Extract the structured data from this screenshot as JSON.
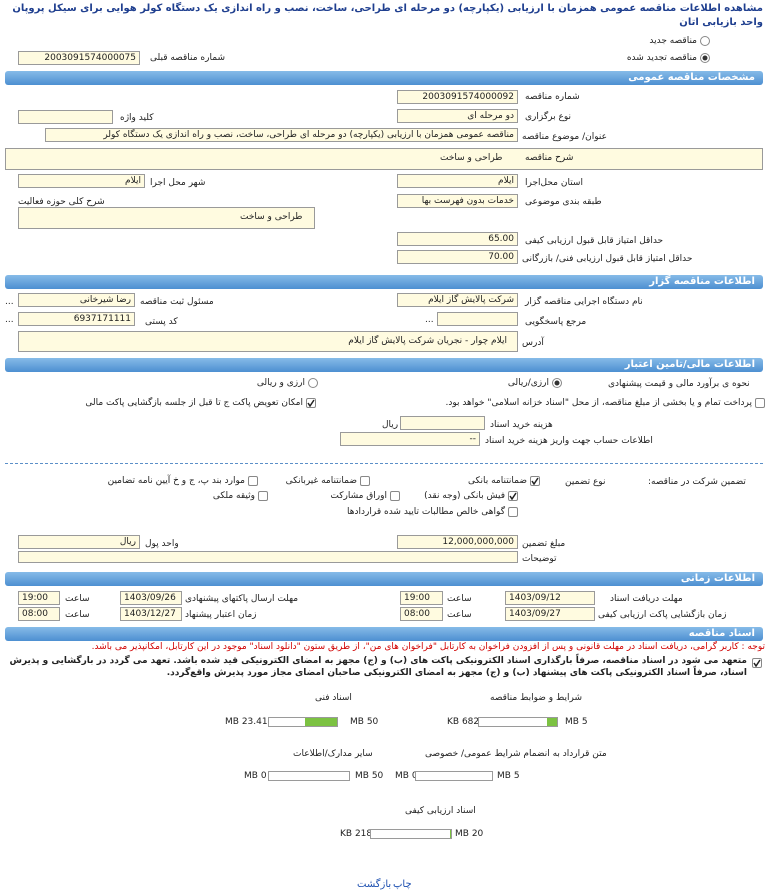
{
  "header": {
    "title": "مشاهده اطلاعات مناقصه عمومی همزمان با ارزیابی (یکپارچه) دو مرحله ای طراحی، ساخت، نصب و راه اندازی یک دستگاه کولر هوایی برای سیکل پروپان واحد بازیابی اتان"
  },
  "tender_type": {
    "new": "مناقصه جدید",
    "renewed": "مناقصه تجدید شده",
    "previous_number_label": "شماره مناقصه قبلی",
    "previous_number": "2003091574000075"
  },
  "general": {
    "heading": "مشخصات مناقصه عمومی",
    "number_label": "شماره مناقصه",
    "number": "2003091574000092",
    "holding_type_label": "نوع برگزاری",
    "holding_type": "دو مرحله ای",
    "keyword_label": "کلید واژه",
    "subject_label": "عنوان/ موضوع مناقصه",
    "subject": "مناقصه عمومی همزمان با ارزیابی (یکپارچه) دو مرحله ای طراحی، ساخت، نصب و راه اندازی یک دستگاه کولر",
    "description_label": "شرح مناقصه",
    "description": "طراحی و ساخت",
    "province_label": "استان محل‌اجرا",
    "province": "ایلام",
    "city_label": "شهر محل اجرا",
    "city": "ایلام",
    "category_label": "طبقه بندی موضوعی",
    "category": "خدمات بدون فهرست بها",
    "activity_label": "شرح کلی حوزه فعالیت",
    "activity": "طراحی و ساخت",
    "min_quality_label": "حداقل امتیاز قابل قبول ارزیابی کیفی",
    "min_quality": "65.00",
    "min_technical_label": "حداقل امتیاز قابل قبول ارزیابی فنی/ بازرگانی",
    "min_technical": "70.00"
  },
  "organizer": {
    "heading": "اطلاعات مناقصه گزار",
    "org_label": "نام دستگاه اجرایی مناقصه گزار",
    "org": "شرکت پالایش گاز ایلام",
    "registrar_label": "مسئول ثبت مناقصه",
    "registrar": "رضا شیرخانی",
    "reference_label": "مرجع پاسخگویی",
    "postal_label": "کد پستی",
    "postal": "6937171111",
    "address_label": "آدرس",
    "address": "ایلام چوار - نجریان شرکت پالایش گاز ایلام",
    "more": "..."
  },
  "finance": {
    "heading": "اطلاعات مالی/تامین اعتبار",
    "estimate_label": "نحوه ی برآورد مالی و قیمت پیشنهادی",
    "rial": "ارزی/ریالی",
    "foreign_and_rial": "ارزی و ریالی",
    "treasury": "پرداخت تمام و یا بخشی از مبلغ مناقصه، از محل \"اسناد خزانه اسلامی\" خواهد بود.",
    "envelope_swap": "امکان تعویض پاکت ج تا قبل از جلسه بازگشایی پاکت مالی",
    "doc_fee_label": "هزینه خرید اسناد",
    "doc_fee_unit": "ریال",
    "account_label": "اطلاعات حساب جهت واریز هزینه خرید اسناد",
    "account": "--"
  },
  "guarantee": {
    "label": "تضمین شرکت در مناقصه:",
    "type_label": "نوع تضمین",
    "options": [
      "ضمانتنامه بانکی",
      "ضمانتنامه غیربانکی",
      "موارد بند پ، ج و خ آیین نامه تضامین",
      "فیش بانکی (وجه نقد)",
      "اوراق مشارکت",
      "وثیقه ملکی",
      "گواهی خالص مطالبات تایید شده قراردادها"
    ],
    "amount_label": "مبلغ تضمین",
    "amount": "12,000,000,000",
    "currency_label": "واحد پول",
    "currency": "ریال",
    "notes_label": "توضیحات"
  },
  "timing": {
    "heading": "اطلاعات زمانی",
    "hour_label": "ساعت",
    "receive_label": "مهلت دریافت اسناد",
    "receive_date": "1403/09/12",
    "receive_time": "19:00",
    "submit_label": "مهلت ارسال پاکتهای پیشنهادی",
    "submit_date": "1403/09/26",
    "submit_time": "19:00",
    "opening_label": "زمان بازگشایی پاکت ارزیابی کیفی",
    "opening_date": "1403/09/27",
    "opening_time": "08:00",
    "validity_label": "زمان اعتبار پیشنهاد",
    "validity_date": "1403/12/27",
    "validity_time": "08:00"
  },
  "documents": {
    "heading": "اسناد مناقصه",
    "notice": "توجه : کاربر گرامی، دریافت اسناد در مهلت قانونی و پس از افزودن فراخوان به کارتابل \"فراخوان های من\"، از طریق ستون \"دانلود اسناد\" موجود در این کارتابل، امکانپذیر می باشد.",
    "commitment": "متعهد می شود در اسناد مناقصه، صرفاً بارگذاری اسناد الکترونیکی پاکت های (ب) و (ج) مجهز به امضای الکترونیکی قید شده باشد. تعهد می گردد در بارگشایی و پذیرش اسناد، صرفاً اسناد الکترونیکی پاکت های پیشنهاد (ب) و (ج) مجهز به امضای الکترونیکی صاحبان امضای مجاز مورد پذیرش واقع‌گردد.",
    "files": [
      {
        "name": "شرایط و ضوابط مناقصه",
        "size": "682 KB",
        "limit": "5 MB"
      },
      {
        "name": "اسناد فنی",
        "size": "23.41 MB",
        "limit": "50 MB"
      },
      {
        "name": "متن قرارداد به انضمام شرایط عمومی/ خصوصی",
        "size": "0 MB",
        "limit": "5 MB"
      },
      {
        "name": "سایر مدارک/اطلاعات",
        "size": "0 MB",
        "limit": "50 MB"
      },
      {
        "name": "اسناد ارزیابی کیفی",
        "size": "218 KB",
        "limit": "20 MB"
      }
    ]
  },
  "footer": {
    "print": "چاپ",
    "back": "بازگشت"
  }
}
